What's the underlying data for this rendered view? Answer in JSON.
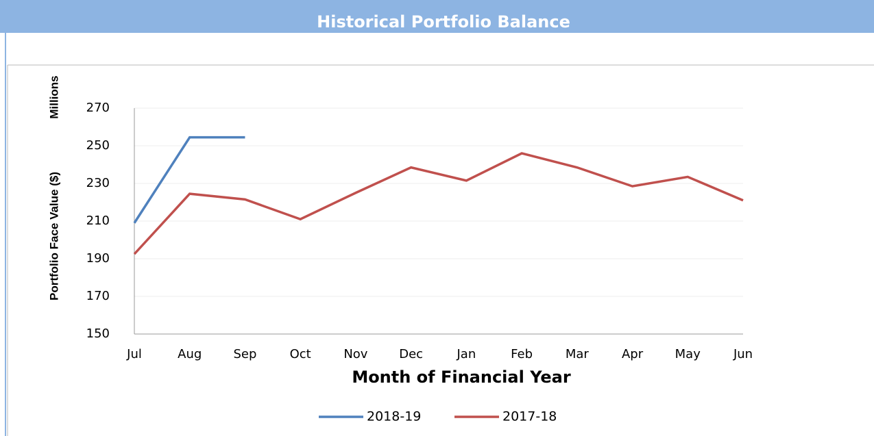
{
  "header": {
    "title": "Historical Portfolio Balance"
  },
  "chart_data": {
    "type": "line",
    "y_label": "Portfolio Face Value ($)",
    "y_unit": "Millions",
    "x_label": "Month of Financial Year",
    "categories": [
      "Jul",
      "Aug",
      "Sep",
      "Oct",
      "Nov",
      "Dec",
      "Jan",
      "Feb",
      "Mar",
      "Apr",
      "May",
      "Jun"
    ],
    "series": [
      {
        "name": "2018-19",
        "color": "#4f81bd",
        "values": [
          209,
          254.5,
          254.5,
          null,
          null,
          null,
          null,
          null,
          null,
          null,
          null,
          null
        ]
      },
      {
        "name": "2017-18",
        "color": "#c0504d",
        "values": [
          192.5,
          224.5,
          221.5,
          211,
          225,
          238.5,
          231.5,
          246,
          238.5,
          228.5,
          233.5,
          221
        ]
      }
    ],
    "ylim": [
      150,
      270
    ],
    "yticks": [
      150,
      170,
      190,
      210,
      230,
      250,
      270
    ],
    "grid": true,
    "legend": "bottom"
  }
}
